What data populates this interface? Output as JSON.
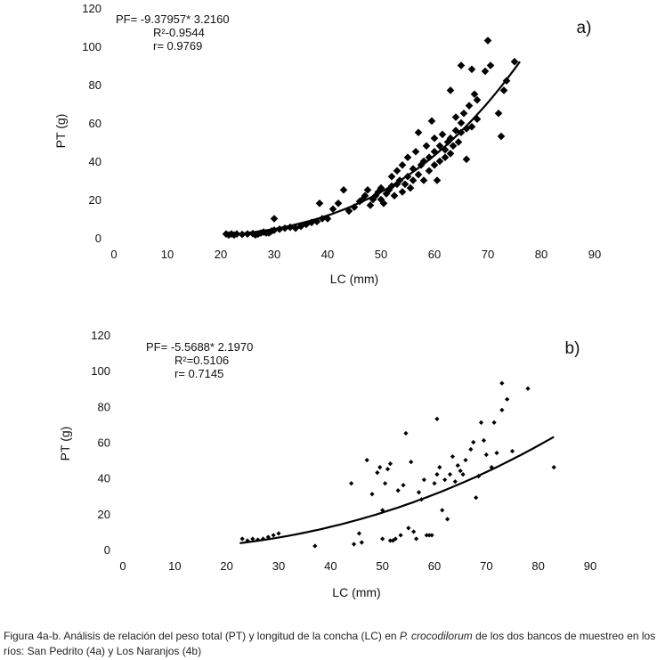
{
  "chart_data": [
    {
      "type": "scatter",
      "panel_label": "a)",
      "xlabel": "LC (mm)",
      "ylabel": "PT (g)",
      "xlim": [
        0,
        90
      ],
      "ylim": [
        0,
        120
      ],
      "x_ticks": [
        0,
        10,
        20,
        30,
        40,
        50,
        60,
        70,
        80,
        90
      ],
      "y_ticks": [
        0,
        20,
        40,
        60,
        80,
        100,
        120
      ],
      "equation": [
        "PF= -9.37957* 3.2160",
        "R²-0.9544",
        "r= 0.9769"
      ],
      "marker": "diamond",
      "trend": {
        "x_from": 21,
        "x_to": 76,
        "y_at_from": 1.5,
        "y_at_to": 92,
        "power": 3.216
      },
      "points": [
        [
          21,
          2
        ],
        [
          21.5,
          1.5
        ],
        [
          22,
          2
        ],
        [
          22.5,
          1.5
        ],
        [
          23,
          2
        ],
        [
          24,
          1.8
        ],
        [
          25,
          2
        ],
        [
          26,
          2.2
        ],
        [
          26.5,
          1.5
        ],
        [
          27,
          2
        ],
        [
          27.5,
          2.5
        ],
        [
          28,
          3
        ],
        [
          28.5,
          2.5
        ],
        [
          29,
          2.5
        ],
        [
          29.5,
          3.5
        ],
        [
          30,
          10
        ],
        [
          30,
          4
        ],
        [
          31,
          4.5
        ],
        [
          32,
          5
        ],
        [
          33,
          5.5
        ],
        [
          34,
          5
        ],
        [
          35,
          6
        ],
        [
          36,
          7
        ],
        [
          37,
          8
        ],
        [
          38,
          8.5
        ],
        [
          38.5,
          18
        ],
        [
          39,
          10
        ],
        [
          40,
          10
        ],
        [
          41,
          15
        ],
        [
          42,
          18
        ],
        [
          43,
          25
        ],
        [
          44,
          14
        ],
        [
          45,
          16
        ],
        [
          46,
          19
        ],
        [
          46.5,
          20
        ],
        [
          47,
          22
        ],
        [
          47.5,
          25
        ],
        [
          48,
          17
        ],
        [
          48.5,
          20
        ],
        [
          49,
          22
        ],
        [
          49.5,
          24
        ],
        [
          50,
          26
        ],
        [
          50,
          20
        ],
        [
          50.5,
          18
        ],
        [
          51,
          23
        ],
        [
          51.5,
          25
        ],
        [
          52,
          27
        ],
        [
          52,
          32
        ],
        [
          52.5,
          22
        ],
        [
          53,
          28
        ],
        [
          53,
          35
        ],
        [
          53.5,
          30
        ],
        [
          54,
          24
        ],
        [
          54,
          38
        ],
        [
          54.5,
          28
        ],
        [
          55,
          32
        ],
        [
          55,
          42
        ],
        [
          55.5,
          26
        ],
        [
          56,
          30
        ],
        [
          56,
          36
        ],
        [
          56.5,
          45
        ],
        [
          57,
          33
        ],
        [
          57,
          55
        ],
        [
          57.5,
          38
        ],
        [
          58,
          30
        ],
        [
          58,
          40
        ],
        [
          58.5,
          48
        ],
        [
          59,
          35
        ],
        [
          59,
          42
        ],
        [
          59.5,
          61
        ],
        [
          60,
          38
        ],
        [
          60,
          45
        ],
        [
          60,
          52
        ],
        [
          60.5,
          30
        ],
        [
          61,
          40
        ],
        [
          61,
          48
        ],
        [
          61.5,
          54
        ],
        [
          62,
          42
        ],
        [
          62,
          46
        ],
        [
          62.5,
          50
        ],
        [
          63,
          44
        ],
        [
          63,
          52
        ],
        [
          63,
          77
        ],
        [
          63.5,
          48
        ],
        [
          64,
          56
        ],
        [
          64,
          63
        ],
        [
          64.5,
          50
        ],
        [
          65,
          55
        ],
        [
          65,
          60
        ],
        [
          65,
          90
        ],
        [
          65.5,
          65
        ],
        [
          66,
          41
        ],
        [
          66,
          57
        ],
        [
          66.5,
          69
        ],
        [
          67,
          58
        ],
        [
          67,
          88
        ],
        [
          67.5,
          75
        ],
        [
          68,
          62
        ],
        [
          68,
          72
        ],
        [
          69.5,
          87
        ],
        [
          70,
          103
        ],
        [
          70.5,
          90
        ],
        [
          72,
          65
        ],
        [
          72.5,
          53
        ],
        [
          73,
          77
        ],
        [
          73.5,
          82
        ],
        [
          75,
          92
        ]
      ]
    },
    {
      "type": "scatter",
      "panel_label": "b)",
      "xlabel": "LC (mm)",
      "ylabel": "PT (g)",
      "xlim": [
        0,
        90
      ],
      "ylim": [
        0,
        120
      ],
      "x_ticks": [
        0,
        10,
        20,
        30,
        40,
        50,
        60,
        70,
        80,
        90
      ],
      "y_ticks": [
        0,
        20,
        40,
        60,
        80,
        100,
        120
      ],
      "equation": [
        "PF= -5.5688* 2.1970",
        "R²=0.5106",
        "r= 0.7145"
      ],
      "marker": "small-diamond",
      "trend": {
        "x_from": 22.5,
        "x_to": 83,
        "y_at_from": 4.5,
        "y_at_to": 63,
        "power": 2.197
      },
      "points": [
        [
          23,
          6
        ],
        [
          24,
          5
        ],
        [
          25,
          6
        ],
        [
          26,
          5.5
        ],
        [
          27,
          6
        ],
        [
          28,
          7
        ],
        [
          29,
          8
        ],
        [
          30,
          9
        ],
        [
          37,
          2
        ],
        [
          44,
          37
        ],
        [
          44.5,
          3
        ],
        [
          45.5,
          9
        ],
        [
          46,
          4
        ],
        [
          47,
          50
        ],
        [
          48,
          31
        ],
        [
          49,
          43
        ],
        [
          49.5,
          46
        ],
        [
          50,
          22
        ],
        [
          50,
          6
        ],
        [
          50.5,
          37
        ],
        [
          51,
          45
        ],
        [
          51.5,
          5
        ],
        [
          51.5,
          48
        ],
        [
          52,
          5
        ],
        [
          52.5,
          6
        ],
        [
          53,
          33
        ],
        [
          53.5,
          8
        ],
        [
          54,
          36
        ],
        [
          54.5,
          65
        ],
        [
          55,
          12
        ],
        [
          55.5,
          49
        ],
        [
          56,
          10
        ],
        [
          56.5,
          6
        ],
        [
          57,
          32
        ],
        [
          57.5,
          28
        ],
        [
          58,
          39
        ],
        [
          58.5,
          8
        ],
        [
          59,
          8
        ],
        [
          59.5,
          8
        ],
        [
          60,
          37
        ],
        [
          60.5,
          42
        ],
        [
          60.5,
          73
        ],
        [
          61,
          46
        ],
        [
          61.5,
          22
        ],
        [
          62,
          39
        ],
        [
          62.5,
          17
        ],
        [
          63,
          42
        ],
        [
          63.5,
          52
        ],
        [
          64,
          38
        ],
        [
          64.5,
          47
        ],
        [
          65,
          44
        ],
        [
          65.5,
          42
        ],
        [
          66,
          50
        ],
        [
          67,
          56
        ],
        [
          67.5,
          60
        ],
        [
          68,
          29
        ],
        [
          68.5,
          41
        ],
        [
          69,
          71
        ],
        [
          69.5,
          61
        ],
        [
          70,
          53
        ],
        [
          71,
          46
        ],
        [
          71.5,
          71
        ],
        [
          72,
          54
        ],
        [
          73,
          78
        ],
        [
          73,
          93
        ],
        [
          74,
          84
        ],
        [
          75,
          55
        ],
        [
          78,
          90
        ],
        [
          83,
          46
        ]
      ]
    }
  ],
  "caption": {
    "before_italic": "Figura 4a-b. Análisis de relación del peso total (PT) y longitud de la concha (LC) en ",
    "italic": "P. crocodilorum",
    "after_italic": " de los dos bancos de muestreo en los ríos: San Pedrito (4a) y Los Naranjos (4b)"
  }
}
